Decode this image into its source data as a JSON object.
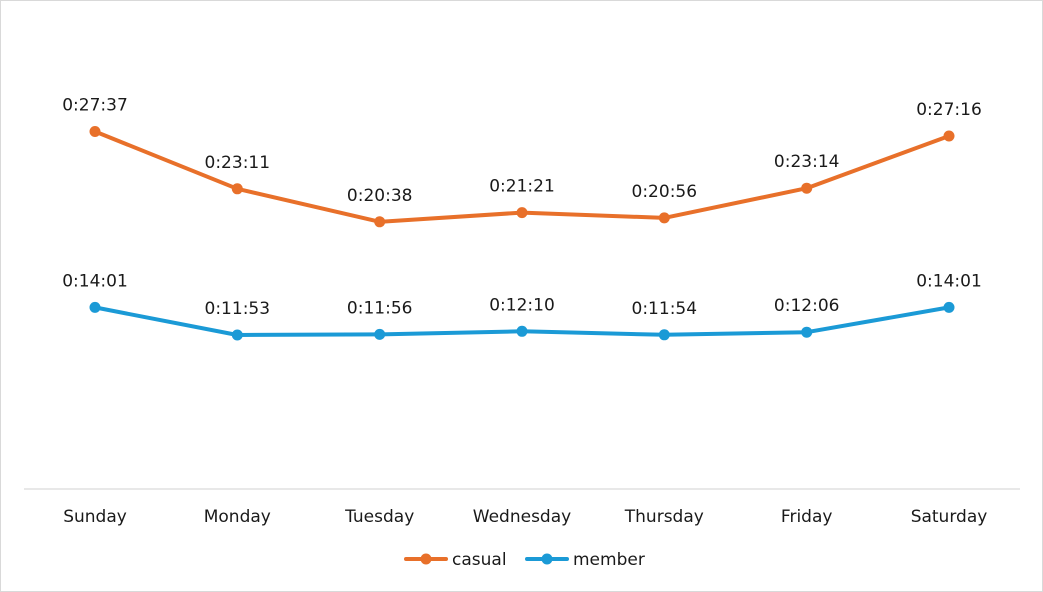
{
  "chart_data": {
    "type": "line",
    "categories": [
      "Sunday",
      "Monday",
      "Tuesday",
      "Wednesday",
      "Thursday",
      "Friday",
      "Saturday"
    ],
    "series": [
      {
        "name": "casual",
        "color": "#e8702a",
        "values_seconds": [
          1657,
          1391,
          1238,
          1281,
          1256,
          1394,
          1636
        ],
        "labels": [
          "0:27:37",
          "0:23:11",
          "0:20:38",
          "0:21:21",
          "0:20:56",
          "0:23:14",
          "0:27:16"
        ]
      },
      {
        "name": "member",
        "color": "#1b9ad6",
        "values_seconds": [
          841,
          713,
          716,
          730,
          714,
          726,
          841
        ],
        "labels": [
          "0:14:01",
          "0:11:53",
          "0:11:56",
          "0:12:10",
          "0:11:54",
          "0:12:06",
          "0:14:01"
        ]
      }
    ],
    "y_unit": "h:mm:ss",
    "ylim_seconds": [
      0,
      2000
    ],
    "grid": false,
    "legend_position": "bottom"
  }
}
